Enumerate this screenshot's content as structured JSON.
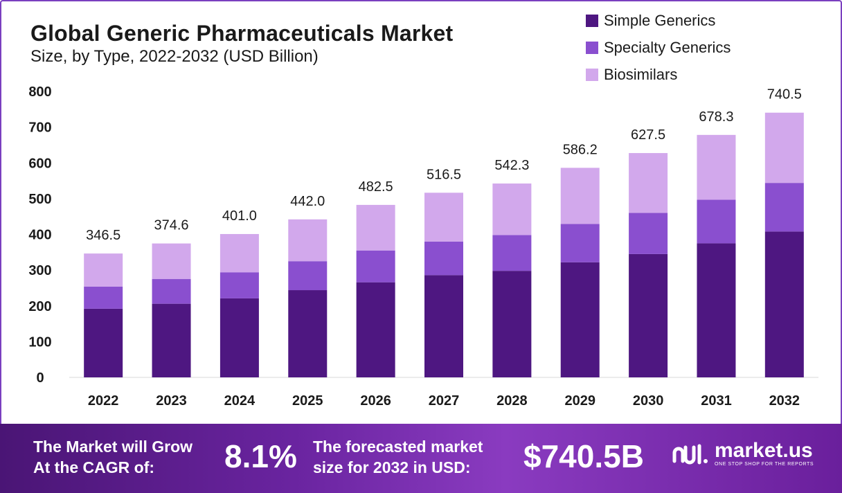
{
  "header": {
    "title": "Global Generic Pharmaceuticals Market",
    "subtitle": "Size, by Type, 2022-2032 (USD Billion)"
  },
  "chart_data": {
    "type": "bar",
    "stacked": true,
    "categories": [
      "2022",
      "2023",
      "2024",
      "2025",
      "2026",
      "2027",
      "2028",
      "2029",
      "2030",
      "2031",
      "2032"
    ],
    "series": [
      {
        "name": "Simple Generics",
        "color": "#4e1781",
        "values": [
          192,
          206,
          221,
          244,
          266,
          286,
          298,
          322,
          345,
          375,
          408
        ]
      },
      {
        "name": "Specialty Generics",
        "color": "#8a4fcf",
        "values": [
          62,
          69,
          73,
          81,
          89,
          94,
          100,
          107,
          115,
          122,
          136
        ]
      },
      {
        "name": "Biosimilars",
        "color": "#d2a8ec",
        "values": [
          92.5,
          99.6,
          107,
          117,
          127.5,
          136.5,
          144.3,
          157.2,
          167.5,
          181.3,
          196.5
        ]
      }
    ],
    "totals": [
      "346.5",
      "374.6",
      "401.0",
      "442.0",
      "482.5",
      "516.5",
      "542.3",
      "586.2",
      "627.5",
      "678.3",
      "740.5"
    ],
    "yticks": [
      "0",
      "100",
      "200",
      "300",
      "400",
      "500",
      "600",
      "700",
      "800"
    ],
    "ylim": [
      0,
      800
    ],
    "grid": false,
    "legend_position": "top-right"
  },
  "banner": {
    "cagr_label_line1": "The Market will Grow",
    "cagr_label_line2": "At the CAGR of:",
    "cagr_value": "8.1%",
    "forecast_label_line1": "The forecasted market",
    "forecast_label_line2": "size for 2032 in USD:",
    "forecast_value": "$740.5B",
    "logo_name": "market.us",
    "logo_tagline": "ONE STOP SHOP FOR THE REPORTS"
  }
}
